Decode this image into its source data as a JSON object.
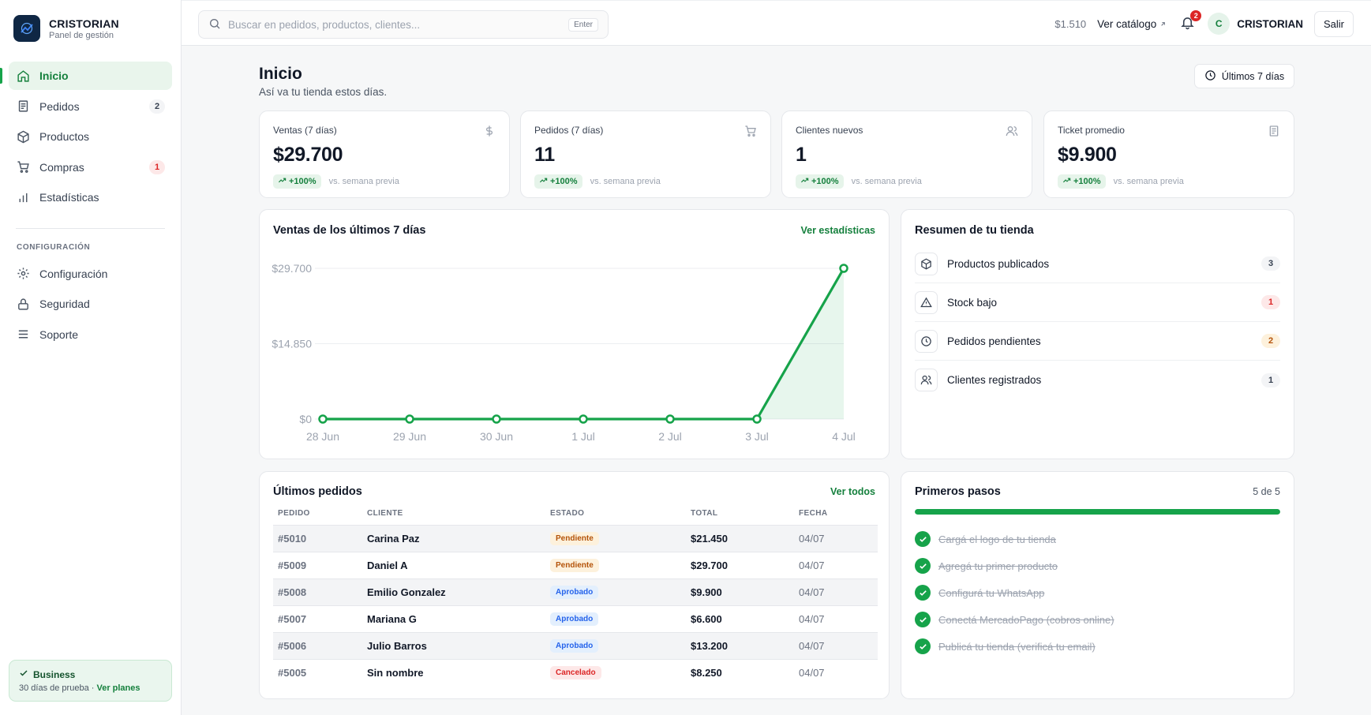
{
  "brand": {
    "name": "CRISTORIAN",
    "subtitle": "Panel de gestión"
  },
  "nav": {
    "items": [
      {
        "label": "Inicio",
        "icon": "home-icon",
        "active": true
      },
      {
        "label": "Pedidos",
        "icon": "orders-icon",
        "badge": "2"
      },
      {
        "label": "Productos",
        "icon": "box-icon"
      },
      {
        "label": "Compras",
        "icon": "cart-icon",
        "badge": "1"
      },
      {
        "label": "Estadísticas",
        "icon": "bar-chart-icon"
      }
    ],
    "section_label": "CONFIGURACIÓN",
    "config_items": [
      {
        "label": "Configuración",
        "icon": "gear-icon"
      },
      {
        "label": "Seguridad",
        "icon": "lock-icon"
      },
      {
        "label": "Soporte",
        "icon": "list-icon"
      }
    ]
  },
  "plan": {
    "title": "Business",
    "trial": "30 días de prueba · ",
    "link": "Ver planes"
  },
  "topbar": {
    "search_placeholder": "Buscar en pedidos, productos, clientes...",
    "search_key": "Enter",
    "balance": "$1.510",
    "catalog_label": "Ver catálogo",
    "notifications_count": "2",
    "avatar_initial": "C",
    "username": "CRISTORIAN",
    "logout_label": "Salir"
  },
  "header": {
    "title": "Inicio",
    "subtitle": "Así va tu tienda estos días.",
    "range_label": "Últimos 7 días"
  },
  "kpis": [
    {
      "label": "Ventas (7 días)",
      "value": "$29.700",
      "trend": "+100%",
      "note": "vs. semana previa",
      "icon": "dollar-icon"
    },
    {
      "label": "Pedidos (7 días)",
      "value": "11",
      "trend": "+100%",
      "note": "vs. semana previa",
      "icon": "cart-icon"
    },
    {
      "label": "Clientes nuevos",
      "value": "1",
      "trend": "+100%",
      "note": "vs. semana previa",
      "icon": "users-icon"
    },
    {
      "label": "Ticket promedio",
      "value": "$9.900",
      "trend": "+100%",
      "note": "vs. semana previa",
      "icon": "receipt-icon"
    }
  ],
  "sales_card": {
    "title": "Ventas de los últimos 7 días",
    "link": "Ver estadísticas"
  },
  "chart_data": {
    "type": "area",
    "title": "Ventas de los últimos 7 días",
    "categories": [
      "28 Jun",
      "29 Jun",
      "30 Jun",
      "1 Jul",
      "2 Jul",
      "3 Jul",
      "4 Jul"
    ],
    "values": [
      0,
      0,
      0,
      0,
      0,
      0,
      29700
    ],
    "y_ticks": [
      "$0",
      "$14.850",
      "$29.700"
    ],
    "ylim": [
      0,
      29700
    ],
    "grid": true,
    "color": "#16a34a"
  },
  "summary": {
    "title": "Resumen de tu tienda",
    "rows": [
      {
        "label": "Productos publicados",
        "count": "3",
        "icon": "box-icon",
        "tone": "gray"
      },
      {
        "label": "Stock bajo",
        "count": "1",
        "icon": "warning-icon",
        "tone": "red"
      },
      {
        "label": "Pedidos pendientes",
        "count": "2",
        "icon": "clock-icon",
        "tone": "amber"
      },
      {
        "label": "Clientes registrados",
        "count": "1",
        "icon": "users-icon",
        "tone": "gray"
      }
    ]
  },
  "orders": {
    "title": "Últimos pedidos",
    "link": "Ver todos",
    "columns": [
      "PEDIDO",
      "CLIENTE",
      "ESTADO",
      "TOTAL",
      "FECHA"
    ],
    "rows": [
      {
        "id": "#5010",
        "client": "Carina Paz",
        "status": "Pendiente",
        "tone": "pend",
        "total": "$21.450",
        "date": "04/07"
      },
      {
        "id": "#5009",
        "client": "Daniel A",
        "status": "Pendiente",
        "tone": "pend",
        "total": "$29.700",
        "date": "04/07"
      },
      {
        "id": "#5008",
        "client": "Emilio Gonzalez",
        "status": "Aprobado",
        "tone": "apr",
        "total": "$9.900",
        "date": "04/07"
      },
      {
        "id": "#5007",
        "client": "Mariana G",
        "status": "Aprobado",
        "tone": "apr",
        "total": "$6.600",
        "date": "04/07"
      },
      {
        "id": "#5006",
        "client": "Julio Barros",
        "status": "Aprobado",
        "tone": "apr",
        "total": "$13.200",
        "date": "04/07"
      },
      {
        "id": "#5005",
        "client": "Sin nombre",
        "status": "Cancelado",
        "tone": "can",
        "total": "$8.250",
        "date": "04/07"
      }
    ]
  },
  "steps": {
    "title": "Primeros pasos",
    "count": "5 de 5",
    "progress": 1.0,
    "items": [
      "Cargá el logo de tu tienda",
      "Agregá tu primer producto",
      "Configurá tu WhatsApp",
      "Conectá MercadoPago (cobros online)",
      "Publicá tu tienda (verificá tu email)"
    ]
  },
  "colors": {
    "accent": "#16a34a",
    "accent_dark": "#15803d",
    "brand_navy": "#0f2744"
  }
}
